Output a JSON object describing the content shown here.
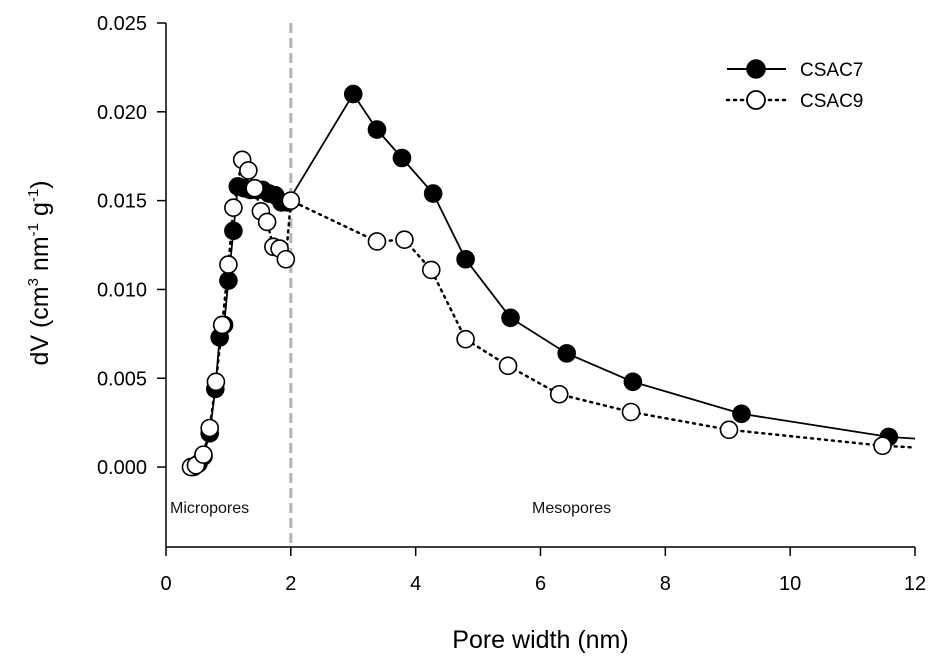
{
  "chart_data": {
    "type": "line",
    "title": "",
    "xlabel": "Pore width (nm)",
    "ylabel_parts": [
      "dV (cm",
      "3",
      " nm",
      "-1",
      " g",
      "-1",
      ")"
    ],
    "xlim": [
      0,
      12
    ],
    "ylim": [
      -0.0045,
      0.025
    ],
    "x_ticks": [
      0,
      2,
      4,
      6,
      8,
      10,
      12
    ],
    "x_tick_labels": [
      "0",
      "2",
      "4",
      "6",
      "8",
      "10",
      "12"
    ],
    "y_ticks": [
      0,
      0.005,
      0.01,
      0.015,
      0.02,
      0.025
    ],
    "y_tick_labels": [
      "0.000",
      "0.005",
      "0.010",
      "0.015",
      "0.020",
      "0.025"
    ],
    "grid": false,
    "legend_position": "top-right",
    "divider_x": 2,
    "annotations": [
      {
        "text": "Micropores"
      },
      {
        "text": "Mesopores"
      }
    ],
    "series": [
      {
        "name": "CSAC7",
        "marker": "filled-circle",
        "line": "solid",
        "color": "#000000",
        "x": [
          0.44,
          0.52,
          0.6,
          0.7,
          0.79,
          0.86,
          0.93,
          1.0,
          1.08,
          1.15,
          1.25,
          1.35,
          1.45,
          1.55,
          1.65,
          1.75,
          1.85,
          1.95,
          3.0,
          3.38,
          3.78,
          4.28,
          4.8,
          5.52,
          6.42,
          7.48,
          9.22,
          11.58
        ],
        "y": [
          0.0,
          0.0002,
          0.0006,
          0.0019,
          0.0044,
          0.0073,
          0.008,
          0.0105,
          0.0133,
          0.0158,
          0.0157,
          0.0156,
          0.0156,
          0.0156,
          0.0154,
          0.0153,
          0.0149,
          0.0149,
          0.021,
          0.019,
          0.0174,
          0.0154,
          0.0117,
          0.0084,
          0.0064,
          0.0048,
          0.003,
          0.0017
        ]
      },
      {
        "name": "CSAC9",
        "marker": "open-circle",
        "line": "dotted",
        "color": "#000000",
        "x": [
          0.4,
          0.48,
          0.6,
          0.7,
          0.8,
          0.9,
          1.0,
          1.08,
          1.22,
          1.32,
          1.42,
          1.52,
          1.62,
          1.72,
          1.82,
          1.92,
          2.0,
          3.38,
          3.82,
          4.25,
          4.8,
          5.48,
          6.3,
          7.45,
          9.02,
          11.48
        ],
        "y": [
          0.0,
          0.0001,
          0.0007,
          0.0022,
          0.0048,
          0.008,
          0.0114,
          0.0146,
          0.0173,
          0.0167,
          0.0157,
          0.0144,
          0.0138,
          0.0124,
          0.0123,
          0.0117,
          0.015,
          0.0127,
          0.0128,
          0.0111,
          0.0072,
          0.0057,
          0.0041,
          0.0031,
          0.0021,
          0.0012
        ]
      }
    ],
    "tail_to": {
      "x": 12,
      "CSAC7": 0.0016,
      "CSAC9": 0.0011
    }
  }
}
